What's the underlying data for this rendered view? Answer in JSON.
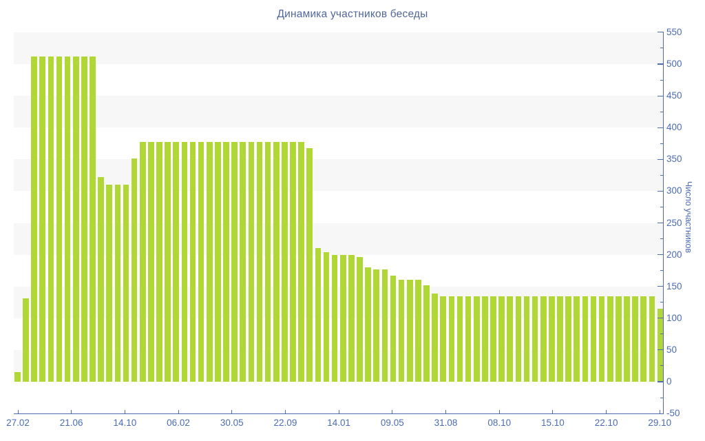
{
  "chart_data": {
    "type": "bar",
    "title": "Динамика участников беседы",
    "ylabel": "Число участников",
    "xlabel": "",
    "legend": "none",
    "grid": "striped-horizontal-bands",
    "ylim": [
      -50,
      550
    ],
    "y_major_step": 50,
    "y_minor_step": 25,
    "categories": [
      "27.02",
      "21.06",
      "14.10",
      "06.02",
      "30.05",
      "22.09",
      "14.01",
      "09.05",
      "31.08",
      "08.10",
      "15.10",
      "22.10",
      "29.10"
    ],
    "series": [
      {
        "name": "Число участников",
        "values": [
          15,
          131,
          512,
          512,
          512,
          512,
          512,
          512,
          512,
          512,
          322,
          310,
          310,
          310,
          352,
          378,
          378,
          378,
          378,
          378,
          378,
          378,
          378,
          378,
          378,
          378,
          378,
          378,
          378,
          378,
          378,
          378,
          378,
          378,
          378,
          368,
          210,
          204,
          200,
          200,
          200,
          196,
          180,
          177,
          177,
          167,
          161,
          161,
          161,
          152,
          139,
          135,
          135,
          135,
          135,
          135,
          135,
          135,
          135,
          135,
          135,
          135,
          135,
          135,
          135,
          135,
          135,
          135,
          135,
          135,
          135,
          135,
          135,
          135,
          135,
          135,
          135,
          115
        ]
      }
    ],
    "colors": {
      "bar": "#b0d735",
      "axis": "#4d6cb0",
      "tick_label": "#4a6cb3",
      "title": "#50669c",
      "stripe": "#f7f7f7",
      "background": "#ffffff"
    }
  }
}
